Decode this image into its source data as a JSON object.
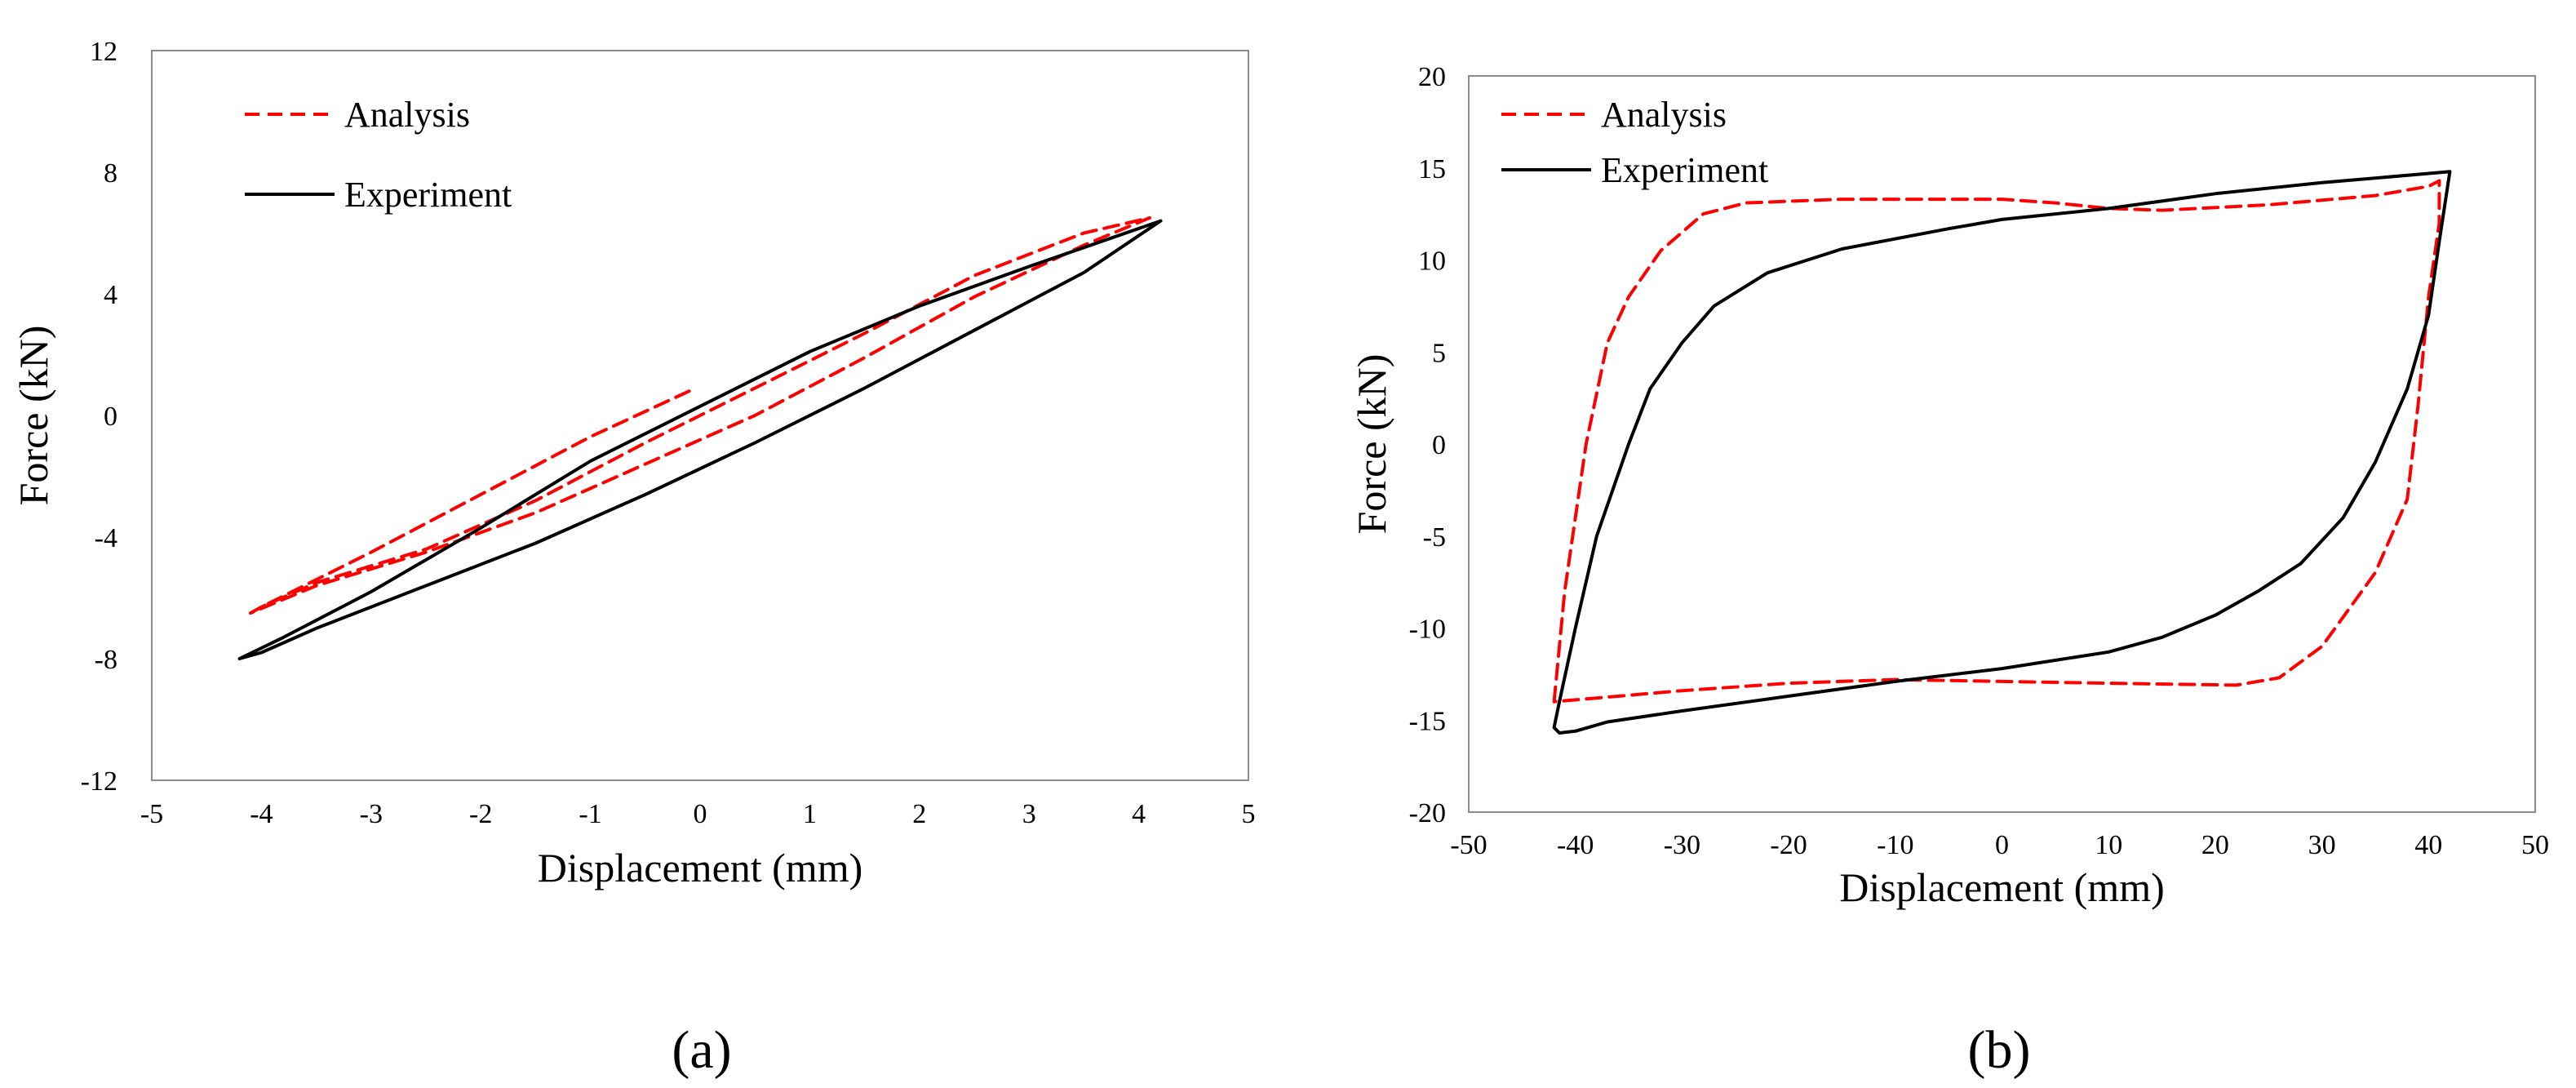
{
  "chart_data": [
    {
      "type": "line",
      "panel": "(a)",
      "xlabel": "Displacement  (mm)",
      "ylabel": "Force  (kN)",
      "xlim": [
        -5,
        5
      ],
      "ylim": [
        -12,
        12
      ],
      "xticks": [
        -5,
        -4,
        -3,
        -2,
        -1,
        0,
        1,
        2,
        3,
        4,
        5
      ],
      "yticks": [
        -12,
        -8,
        -4,
        0,
        4,
        8,
        12
      ],
      "grid": false,
      "legend_position": "top-left",
      "series": [
        {
          "name": "Analysis",
          "style": "dashed",
          "color": "#ff0000",
          "points": [
            [
              -0.1,
              0.8
            ],
            [
              -1.0,
              -0.7
            ],
            [
              -2.0,
              -2.6
            ],
            [
              -3.0,
              -4.5
            ],
            [
              -4.0,
              -6.3
            ],
            [
              -4.1,
              -6.5
            ],
            [
              -3.5,
              -5.6
            ],
            [
              -2.5,
              -4.5
            ],
            [
              -1.5,
              -3.2
            ],
            [
              -0.5,
              -1.6
            ],
            [
              0.5,
              0.0
            ],
            [
              1.5,
              1.9
            ],
            [
              2.5,
              3.9
            ],
            [
              3.5,
              5.6
            ],
            [
              4.1,
              6.5
            ],
            [
              3.5,
              6.0
            ],
            [
              2.5,
              4.6
            ],
            [
              1.5,
              2.7
            ],
            [
              0.5,
              0.9
            ],
            [
              -0.5,
              -0.9
            ],
            [
              -1.5,
              -2.8
            ],
            [
              -2.5,
              -4.4
            ],
            [
              -3.5,
              -5.5
            ],
            [
              -4.0,
              -6.3
            ]
          ]
        },
        {
          "name": "Experiment",
          "style": "solid",
          "color": "#000000",
          "points": [
            [
              4.2,
              6.4
            ],
            [
              3.5,
              4.7
            ],
            [
              2.5,
              2.8
            ],
            [
              1.5,
              0.9
            ],
            [
              0.5,
              -0.9
            ],
            [
              -0.5,
              -2.6
            ],
            [
              -1.5,
              -4.2
            ],
            [
              -2.5,
              -5.6
            ],
            [
              -3.5,
              -7.0
            ],
            [
              -4.0,
              -7.8
            ],
            [
              -4.2,
              -8.0
            ],
            [
              -3.8,
              -7.3
            ],
            [
              -3.0,
              -5.8
            ],
            [
              -2.0,
              -3.7
            ],
            [
              -1.0,
              -1.5
            ],
            [
              0.0,
              0.3
            ],
            [
              1.0,
              2.1
            ],
            [
              2.0,
              3.6
            ],
            [
              3.0,
              4.9
            ],
            [
              4.2,
              6.4
            ]
          ]
        }
      ]
    },
    {
      "type": "line",
      "panel": "(b)",
      "xlabel": "Displacement  (mm)",
      "ylabel": "Force  (kN)",
      "xlim": [
        -50,
        50
      ],
      "ylim": [
        -20,
        20
      ],
      "xticks": [
        -50,
        -40,
        -30,
        -20,
        -10,
        0,
        10,
        20,
        30,
        40,
        50
      ],
      "yticks": [
        -20,
        -15,
        -10,
        -5,
        0,
        5,
        10,
        15,
        20
      ],
      "grid": false,
      "legend_position": "top-left",
      "series": [
        {
          "name": "Analysis",
          "style": "dashed",
          "color": "#ff0000",
          "points": [
            [
              -42,
              -14
            ],
            [
              -41,
              -8
            ],
            [
              -39,
              0
            ],
            [
              -37,
              5.5
            ],
            [
              -35,
              8
            ],
            [
              -32,
              10.5
            ],
            [
              -28,
              12.5
            ],
            [
              -24,
              13.1
            ],
            [
              -15,
              13.3
            ],
            [
              -5,
              13.3
            ],
            [
              0,
              13.3
            ],
            [
              5,
              13.1
            ],
            [
              10,
              12.8
            ],
            [
              15,
              12.7
            ],
            [
              25,
              13.0
            ],
            [
              35,
              13.5
            ],
            [
              40,
              14.0
            ],
            [
              41,
              14.3
            ],
            [
              41,
              12
            ],
            [
              40,
              8
            ],
            [
              39,
              2
            ],
            [
              38,
              -3
            ],
            [
              35,
              -7
            ],
            [
              30,
              -11
            ],
            [
              26,
              -12.7
            ],
            [
              22,
              -13.1
            ],
            [
              10,
              -13.0
            ],
            [
              0,
              -12.9
            ],
            [
              -10,
              -12.8
            ],
            [
              -20,
              -13.0
            ],
            [
              -30,
              -13.4
            ],
            [
              -38,
              -13.8
            ],
            [
              -42,
              -14
            ]
          ]
        },
        {
          "name": "Experiment",
          "style": "solid",
          "color": "#000000",
          "points": [
            [
              42,
              14.8
            ],
            [
              41,
              11
            ],
            [
              40,
              7
            ],
            [
              38,
              3
            ],
            [
              35,
              -1
            ],
            [
              32,
              -4
            ],
            [
              28,
              -6.5
            ],
            [
              24,
              -8
            ],
            [
              20,
              -9.3
            ],
            [
              15,
              -10.5
            ],
            [
              10,
              -11.3
            ],
            [
              0,
              -12.2
            ],
            [
              -10,
              -12.9
            ],
            [
              -20,
              -13.7
            ],
            [
              -30,
              -14.5
            ],
            [
              -37,
              -15.1
            ],
            [
              -40,
              -15.6
            ],
            [
              -41.5,
              -15.7
            ],
            [
              -42,
              -15.4
            ],
            [
              -41.5,
              -14
            ],
            [
              -40,
              -10
            ],
            [
              -38,
              -5
            ],
            [
              -35,
              0
            ],
            [
              -33,
              3
            ],
            [
              -30,
              5.5
            ],
            [
              -27,
              7.5
            ],
            [
              -22,
              9.3
            ],
            [
              -15,
              10.6
            ],
            [
              -5,
              11.7
            ],
            [
              0,
              12.2
            ],
            [
              10,
              12.8
            ],
            [
              20,
              13.6
            ],
            [
              30,
              14.2
            ],
            [
              42,
              14.8
            ]
          ]
        }
      ]
    }
  ],
  "panels": [
    {
      "label": "(a)"
    },
    {
      "label": "(b)"
    }
  ]
}
